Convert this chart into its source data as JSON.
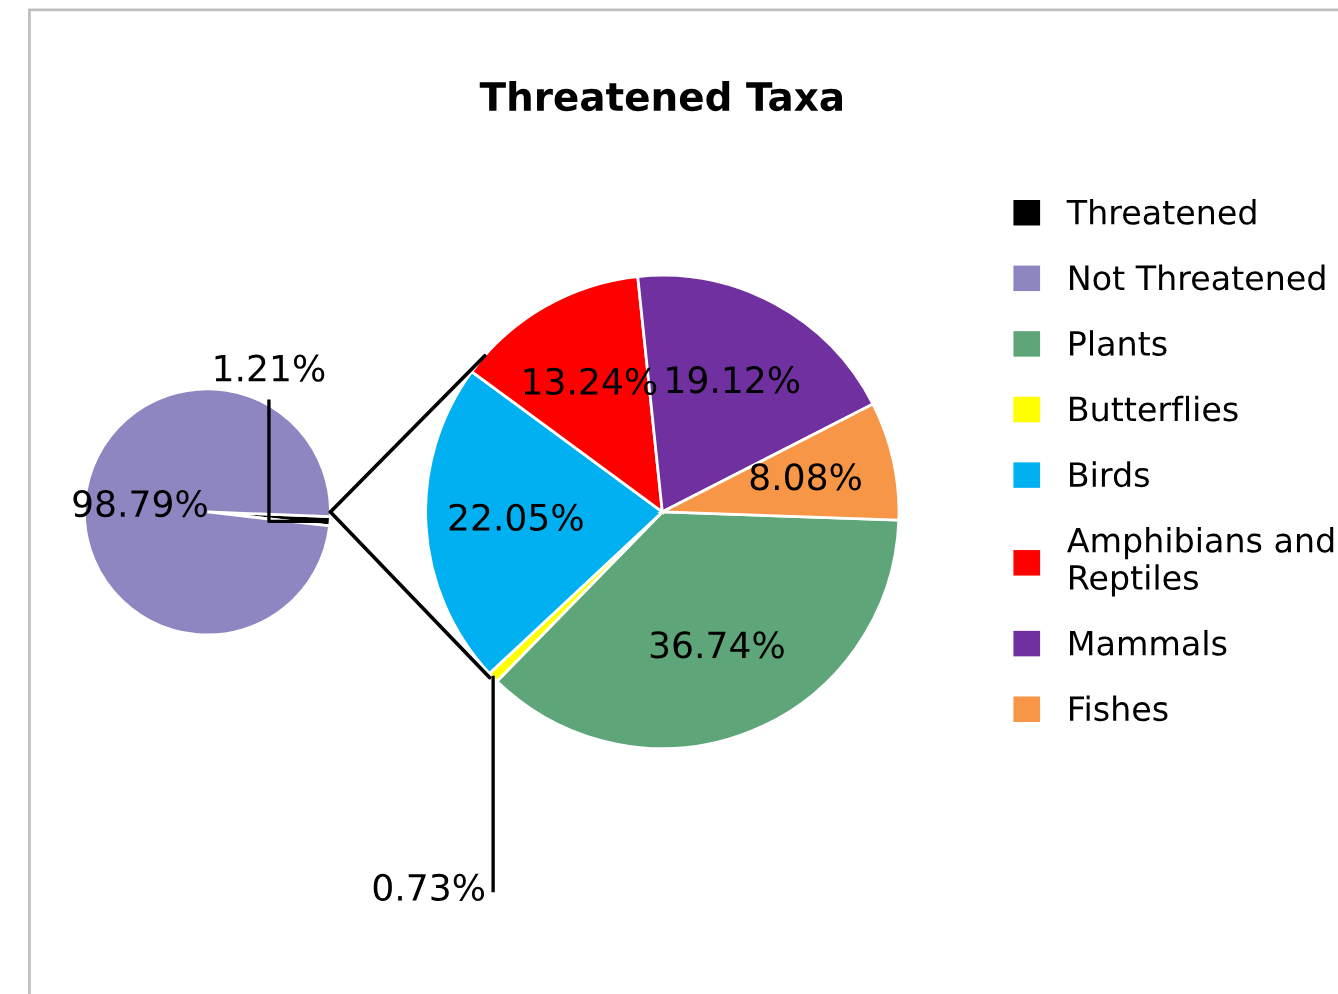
{
  "chart_data": [
    {
      "type": "pie",
      "categories": [
        "Threatened",
        "Not Threatened"
      ],
      "values": [
        1.21,
        98.79
      ],
      "value_labels": [
        "1.21%",
        "98.79%"
      ],
      "colors": [
        "#000000",
        "#8e86c0"
      ],
      "legend": "right"
    },
    {
      "type": "pie",
      "title": "Threatened Taxa",
      "categories": [
        "Plants",
        "Butterflies",
        "Birds",
        "Amphibians and Reptiles",
        "Mammals",
        "Fishes"
      ],
      "values": [
        36.74,
        0.73,
        22.05,
        13.24,
        19.12,
        8.08
      ],
      "value_labels": [
        "36.74%",
        "0.73%",
        "22.05%",
        "13.24%",
        "19.12%",
        "8.08%"
      ],
      "colors": [
        "#5ea67a",
        "#ffff00",
        "#00b0f0",
        "#ff0000",
        "#7030a0",
        "#f79646"
      ],
      "legend": "right"
    }
  ]
}
